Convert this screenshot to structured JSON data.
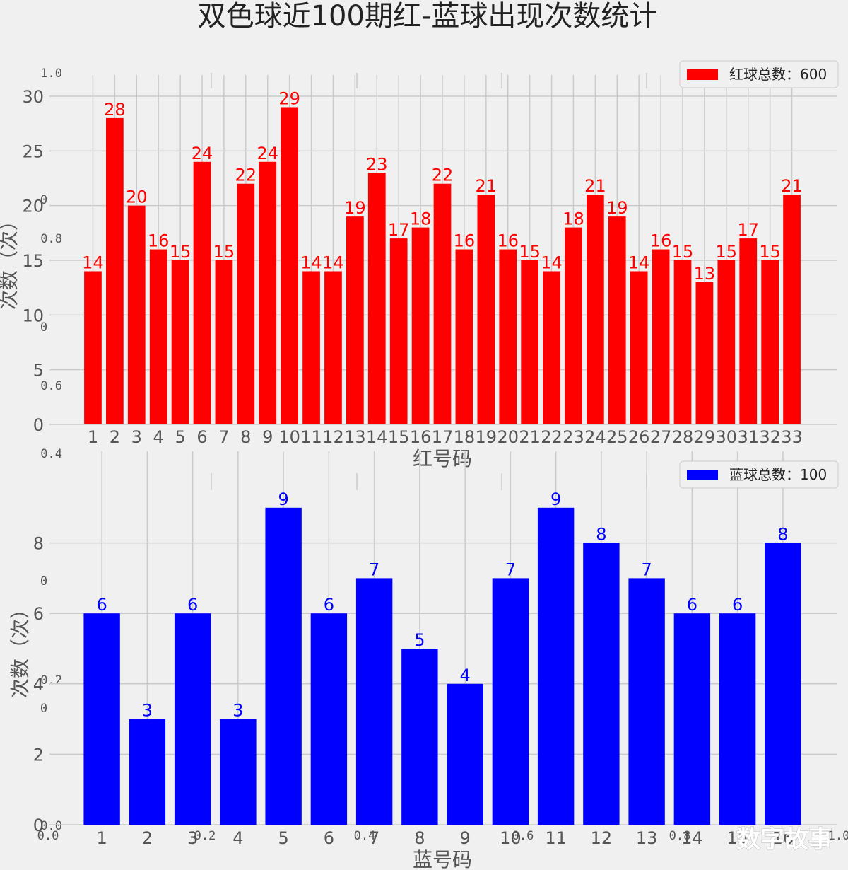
{
  "title": "双色球近100期红-蓝球出现次数统计",
  "watermark": "数字故事",
  "chart_data": [
    {
      "type": "bar",
      "color": "#ff0000",
      "xlabel": "红号码",
      "ylabel": "次数（次）",
      "legend": "红球总数：600",
      "legend_position": "top-right",
      "grid": true,
      "ylim": [
        0,
        30
      ],
      "yticks": [
        "0",
        "5",
        "10",
        "15",
        "20",
        "25",
        "30"
      ],
      "categories": [
        "1",
        "2",
        "3",
        "4",
        "5",
        "6",
        "7",
        "8",
        "9",
        "10",
        "11",
        "12",
        "13",
        "14",
        "15",
        "16",
        "17",
        "18",
        "19",
        "20",
        "21",
        "22",
        "23",
        "24",
        "25",
        "26",
        "27",
        "28",
        "29",
        "30",
        "31",
        "32",
        "33"
      ],
      "values": [
        14,
        28,
        20,
        16,
        15,
        24,
        15,
        22,
        24,
        29,
        14,
        14,
        19,
        23,
        17,
        18,
        22,
        16,
        21,
        16,
        15,
        14,
        18,
        21,
        19,
        14,
        16,
        15,
        13,
        15,
        17,
        15,
        21
      ]
    },
    {
      "type": "bar",
      "color": "#0000ff",
      "xlabel": "蓝号码",
      "ylabel": "次数（次）",
      "legend": "蓝球总数：100",
      "legend_position": "top-right",
      "grid": true,
      "ylim": [
        0,
        10
      ],
      "yticks": [
        "0",
        "2",
        "4",
        "6",
        "8"
      ],
      "categories": [
        "1",
        "2",
        "3",
        "4",
        "5",
        "6",
        "7",
        "8",
        "9",
        "10",
        "11",
        "12",
        "13",
        "14",
        "15",
        "16"
      ],
      "values": [
        6,
        3,
        6,
        3,
        9,
        6,
        7,
        5,
        4,
        7,
        9,
        8,
        7,
        6,
        6,
        8
      ]
    }
  ],
  "background_axis": {
    "yticks": [
      "1.0",
      "0.8",
      "0.6",
      "0.4",
      "0.2",
      "0.0"
    ],
    "xticks": [
      "0.0",
      "0.2",
      "0.4",
      "0.6",
      "0.8",
      "1.0"
    ],
    "offset_text": [
      "0",
      "0",
      "0",
      "0"
    ]
  }
}
